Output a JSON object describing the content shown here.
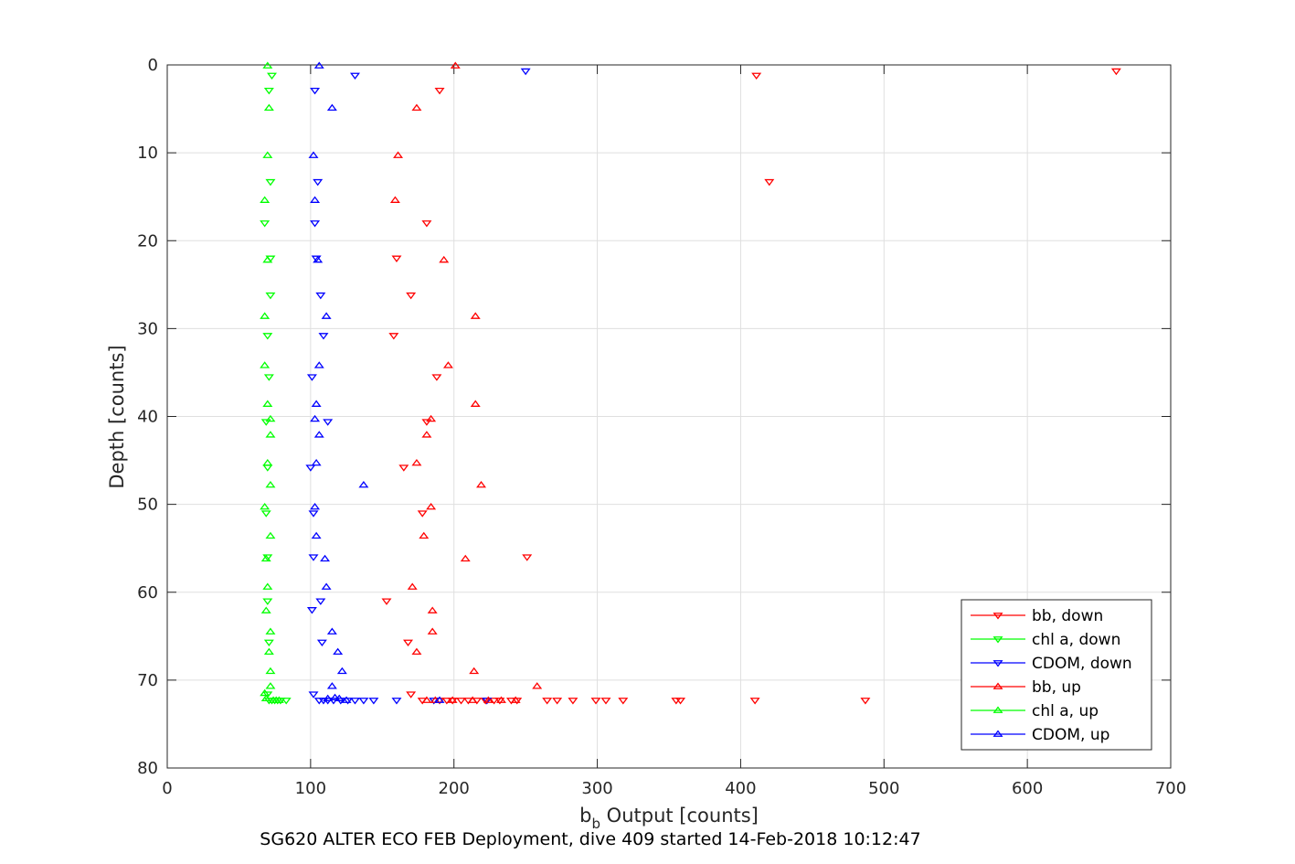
{
  "chart_data": {
    "type": "scatter",
    "title": "",
    "xlabel_main": "b",
    "xlabel_sub": "b",
    "xlabel_rest": " Output [counts]",
    "ylabel": "Depth [counts]",
    "footer": "SG620 ALTER ECO FEB Deployment, dive 409 started 14-Feb-2018 10:12:47",
    "xlim": [
      0,
      700
    ],
    "ylim": [
      0,
      80
    ],
    "y_reversed": true,
    "grid": true,
    "legend_position": "bottom-right",
    "xticks": [
      "0",
      "100",
      "200",
      "300",
      "400",
      "500",
      "600",
      "700"
    ],
    "yticks": [
      "0",
      "10",
      "20",
      "30",
      "40",
      "50",
      "60",
      "70",
      "80"
    ],
    "series": [
      {
        "name": "bb, down",
        "color": "#ff0000",
        "marker": "triangle-down",
        "points": [
          [
            662,
            0.7
          ],
          [
            411,
            1.2
          ],
          [
            190,
            2.9
          ],
          [
            420,
            13.3
          ],
          [
            181,
            18.0
          ],
          [
            160,
            22.0
          ],
          [
            170,
            26.2
          ],
          [
            158,
            30.8
          ],
          [
            188,
            35.5
          ],
          [
            181,
            40.6
          ],
          [
            165,
            45.8
          ],
          [
            178,
            51.0
          ],
          [
            251,
            56.0
          ],
          [
            153,
            61.0
          ],
          [
            168,
            65.7
          ],
          [
            170,
            71.6
          ],
          [
            178,
            72.3
          ],
          [
            190,
            72.3
          ],
          [
            195,
            72.3
          ],
          [
            199,
            72.3
          ],
          [
            205,
            72.3
          ],
          [
            210,
            72.3
          ],
          [
            216,
            72.3
          ],
          [
            222,
            72.3
          ],
          [
            228,
            72.3
          ],
          [
            232,
            72.3
          ],
          [
            240,
            72.3
          ],
          [
            244,
            72.3
          ],
          [
            265,
            72.3
          ],
          [
            272,
            72.3
          ],
          [
            283,
            72.3
          ],
          [
            299,
            72.3
          ],
          [
            306,
            72.3
          ],
          [
            318,
            72.3
          ],
          [
            355,
            72.3
          ],
          [
            358,
            72.3
          ],
          [
            410,
            72.3
          ],
          [
            487,
            72.3
          ]
        ]
      },
      {
        "name": "chl a, down",
        "color": "#00ff00",
        "marker": "triangle-down",
        "points": [
          [
            73,
            1.2
          ],
          [
            71,
            2.9
          ],
          [
            72,
            13.3
          ],
          [
            68,
            18.0
          ],
          [
            72,
            22.0
          ],
          [
            72,
            26.2
          ],
          [
            70,
            30.8
          ],
          [
            71,
            35.5
          ],
          [
            69,
            40.6
          ],
          [
            70,
            45.8
          ],
          [
            69,
            51.0
          ],
          [
            70,
            56.0
          ],
          [
            70,
            61.0
          ],
          [
            71,
            65.7
          ],
          [
            70,
            71.6
          ],
          [
            71,
            72.3
          ],
          [
            73,
            72.3
          ],
          [
            75,
            72.3
          ],
          [
            77,
            72.3
          ],
          [
            79,
            72.3
          ],
          [
            83,
            72.3
          ]
        ]
      },
      {
        "name": "CDOM, down",
        "color": "#0000ff",
        "marker": "triangle-down",
        "points": [
          [
            250,
            0.7
          ],
          [
            131,
            1.2
          ],
          [
            103,
            2.9
          ],
          [
            105,
            13.3
          ],
          [
            103,
            18.0
          ],
          [
            104,
            22.0
          ],
          [
            107,
            26.2
          ],
          [
            109,
            30.8
          ],
          [
            101,
            35.5
          ],
          [
            112,
            40.6
          ],
          [
            100,
            45.8
          ],
          [
            102,
            51.0
          ],
          [
            102,
            56.0
          ],
          [
            101,
            62.0
          ],
          [
            107,
            61.0
          ],
          [
            108,
            65.7
          ],
          [
            102,
            71.6
          ],
          [
            106,
            72.3
          ],
          [
            109,
            72.3
          ],
          [
            112,
            72.3
          ],
          [
            116,
            72.3
          ],
          [
            121,
            72.3
          ],
          [
            126,
            72.3
          ],
          [
            131,
            72.3
          ],
          [
            137,
            72.3
          ],
          [
            144,
            72.3
          ],
          [
            160,
            72.3
          ],
          [
            186,
            72.3
          ],
          [
            223,
            72.3
          ]
        ]
      },
      {
        "name": "bb, up",
        "color": "#ff0000",
        "marker": "triangle-up",
        "points": [
          [
            201,
            0.1
          ],
          [
            174,
            4.9
          ],
          [
            161,
            10.3
          ],
          [
            159,
            15.4
          ],
          [
            193,
            22.2
          ],
          [
            215,
            28.6
          ],
          [
            196,
            34.2
          ],
          [
            215,
            38.6
          ],
          [
            184,
            40.3
          ],
          [
            181,
            42.1
          ],
          [
            174,
            45.3
          ],
          [
            219,
            47.8
          ],
          [
            184,
            50.3
          ],
          [
            179,
            53.6
          ],
          [
            208,
            56.2
          ],
          [
            171,
            59.4
          ],
          [
            185,
            62.1
          ],
          [
            185,
            64.5
          ],
          [
            174,
            66.8
          ],
          [
            214,
            69.0
          ],
          [
            258,
            70.7
          ],
          [
            181,
            72.3
          ],
          [
            187,
            72.3
          ],
          [
            199,
            72.3
          ],
          [
            213,
            72.3
          ],
          [
            224,
            72.3
          ],
          [
            233,
            72.3
          ],
          [
            243,
            72.3
          ]
        ]
      },
      {
        "name": "chl a, up",
        "color": "#00ff00",
        "marker": "triangle-up",
        "points": [
          [
            70,
            0.1
          ],
          [
            71,
            4.9
          ],
          [
            70,
            10.3
          ],
          [
            68,
            15.4
          ],
          [
            70,
            22.2
          ],
          [
            68,
            28.6
          ],
          [
            68,
            34.2
          ],
          [
            70,
            38.6
          ],
          [
            72,
            40.3
          ],
          [
            72,
            42.1
          ],
          [
            70,
            45.3
          ],
          [
            72,
            47.8
          ],
          [
            68,
            50.3
          ],
          [
            72,
            53.6
          ],
          [
            69,
            56.2
          ],
          [
            70,
            59.4
          ],
          [
            69,
            62.1
          ],
          [
            72,
            64.5
          ],
          [
            71,
            66.8
          ],
          [
            72,
            69.0
          ],
          [
            72,
            70.7
          ],
          [
            68,
            71.5
          ],
          [
            69,
            72.1
          ],
          [
            74,
            72.3
          ],
          [
            76,
            72.3
          ],
          [
            78,
            72.3
          ]
        ]
      },
      {
        "name": "CDOM, up",
        "color": "#0000ff",
        "marker": "triangle-up",
        "points": [
          [
            106,
            0.1
          ],
          [
            115,
            4.9
          ],
          [
            102,
            10.3
          ],
          [
            103,
            15.4
          ],
          [
            105,
            22.2
          ],
          [
            111,
            28.6
          ],
          [
            106,
            34.2
          ],
          [
            104,
            38.6
          ],
          [
            103,
            40.3
          ],
          [
            106,
            42.1
          ],
          [
            104,
            45.3
          ],
          [
            137,
            47.8
          ],
          [
            103,
            50.3
          ],
          [
            104,
            53.6
          ],
          [
            110,
            56.2
          ],
          [
            111,
            59.4
          ],
          [
            115,
            64.5
          ],
          [
            119,
            66.8
          ],
          [
            122,
            69.0
          ],
          [
            115,
            70.7
          ],
          [
            112,
            72.1
          ],
          [
            117,
            72.0
          ],
          [
            120,
            72.1
          ],
          [
            125,
            72.3
          ],
          [
            190,
            72.3
          ]
        ]
      }
    ]
  }
}
